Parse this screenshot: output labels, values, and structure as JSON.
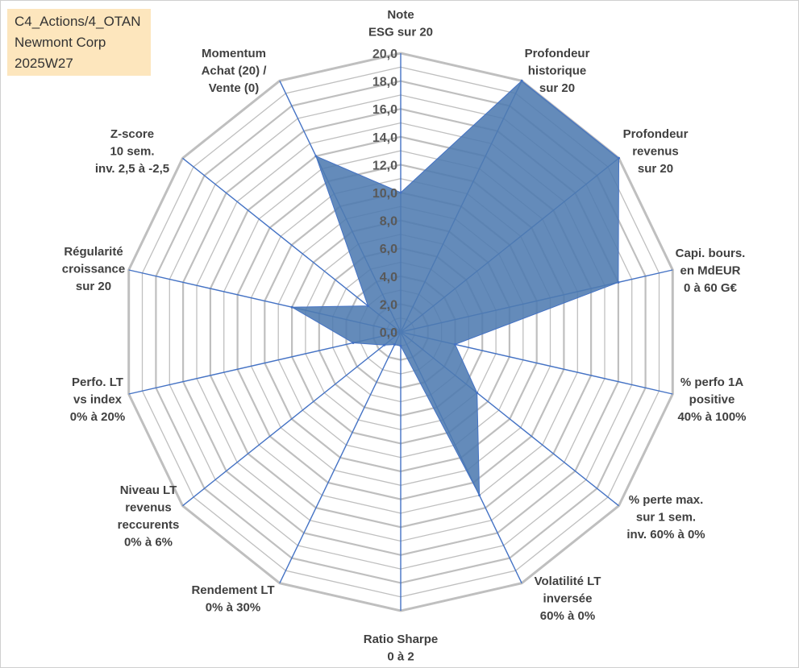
{
  "info": {
    "line1": "C4_Actions/4_OTAN",
    "line2": "Newmont Corp",
    "line3": "2025W27"
  },
  "colors": {
    "series_fill": "#4f7bb0",
    "spoke": "#4472c4",
    "grid": "#bfbfbf",
    "info_bg": "#fde6bd"
  },
  "chart_data": {
    "type": "radar",
    "rlim": [
      0,
      20
    ],
    "tick_step": 2,
    "minor_step": 1,
    "grid": true,
    "tick_labels": [
      "0,0",
      "2,0",
      "4,0",
      "6,0",
      "8,0",
      "10,0",
      "12,0",
      "14,0",
      "16,0",
      "18,0",
      "20,0"
    ],
    "categories": [
      [
        "Note",
        "ESG sur 20"
      ],
      [
        "Profondeur",
        "historique",
        "sur 20"
      ],
      [
        "Profondeur",
        "revenus",
        "sur 20"
      ],
      [
        "Capi. bours.",
        "en MdEUR",
        "0 à 60 G€"
      ],
      [
        "% perfo 1A",
        "positive",
        "40% à 100%"
      ],
      [
        "% perte max.",
        "sur 1 sem.",
        "inv. 60% à 0%"
      ],
      [
        "Volatilité LT",
        "inversée",
        "60% à 0%"
      ],
      [
        "Ratio Sharpe",
        "0 à 2"
      ],
      [
        "Rendement LT",
        "0% à 30%"
      ],
      [
        "Niveau LT",
        "revenus",
        "reccurents",
        "0% à 6%"
      ],
      [
        "Perfo. LT",
        "vs index",
        "0% à 20%"
      ],
      [
        "Régularité",
        "croissance",
        "sur 20"
      ],
      [
        "Z-score",
        "10 sem.",
        "inv. 2,5 à -2,5"
      ],
      [
        "Momentum",
        "Achat (20) /",
        "Vente (0)"
      ]
    ],
    "series": [
      {
        "values": [
          10.0,
          20.0,
          20.0,
          16.0,
          4.0,
          7.0,
          13.0,
          1.0,
          1.0,
          1.5,
          3.5,
          8.0,
          3.0,
          14.0
        ]
      }
    ]
  }
}
